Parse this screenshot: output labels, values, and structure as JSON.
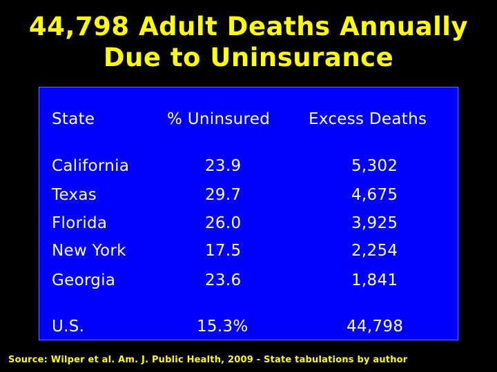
{
  "title": {
    "line1": "44,798 Adult Deaths Annually",
    "line2": "Due to Uninsurance"
  },
  "table": {
    "headers": {
      "state": "State",
      "pct": "% Uninsured",
      "deaths": "Excess Deaths"
    },
    "rows": [
      {
        "state": "California",
        "pct": "23.9",
        "deaths": "5,302"
      },
      {
        "state": "Texas",
        "pct": "29.7",
        "deaths": "4,675"
      },
      {
        "state": "Florida",
        "pct": "26.0",
        "deaths": "3,925"
      },
      {
        "state": "New York",
        "pct": "17.5",
        "deaths": "2,254"
      },
      {
        "state": "Georgia",
        "pct": "23.6",
        "deaths": "1,841"
      }
    ],
    "total": {
      "state": "U.S.",
      "pct": "15.3%",
      "deaths": "44,798"
    }
  },
  "source": "Source: Wilper et al.  Am. J. Public Health, 2009 - State tabulations by author",
  "colors": {
    "background": "#000000",
    "title": "#ffff00",
    "panel": "#0000ff",
    "text": "#ffffff"
  }
}
